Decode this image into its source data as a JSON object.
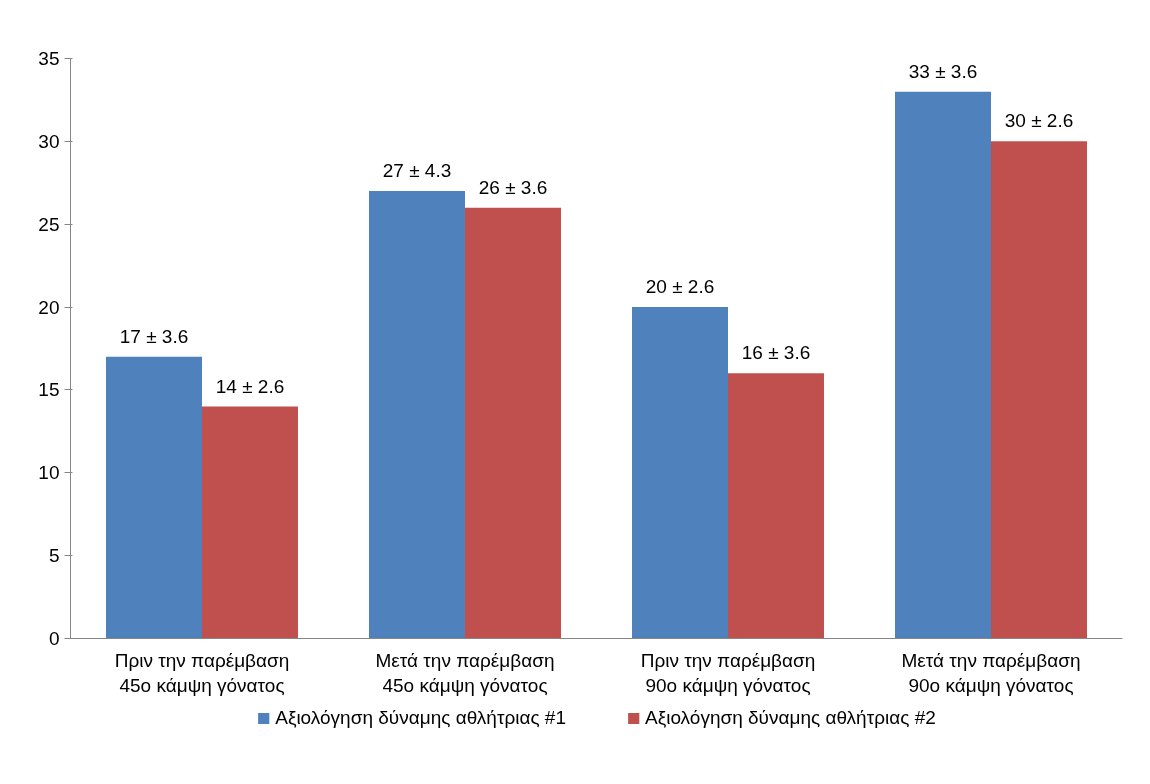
{
  "chart_data": {
    "type": "bar",
    "categories": [
      "Πριν την παρέμβαση\n45ο κάμψη γόνατος",
      "Μετά την παρέμβαση\n45ο κάμψη γόνατος",
      "Πριν την παρέμβαση\n90ο κάμψη γόνατος",
      "Μετά την παρέμβαση\n90ο κάμψη γόνατος"
    ],
    "series": [
      {
        "name": "Αξιολόγηση δύναμης αθλήτριας #1",
        "color": "#4f81bd",
        "values": [
          17,
          27,
          20,
          33
        ],
        "value_labels": [
          "17 ± 3.6",
          "27 ± 4.3",
          "20 ± 2.6",
          "33 ± 3.6"
        ]
      },
      {
        "name": "Αξιολόγηση δύναμης αθλήτριας #2",
        "color": "#c0504d",
        "values": [
          14,
          26,
          16,
          30
        ],
        "value_labels": [
          "14 ± 2.6",
          "26 ± 3.6",
          "16 ± 3.6",
          "30 ± 2.6"
        ]
      }
    ],
    "ylim": [
      0,
      35
    ],
    "yticks": [
      0,
      5,
      10,
      15,
      20,
      25,
      30,
      35
    ],
    "grid": false,
    "legend": "bottom"
  }
}
